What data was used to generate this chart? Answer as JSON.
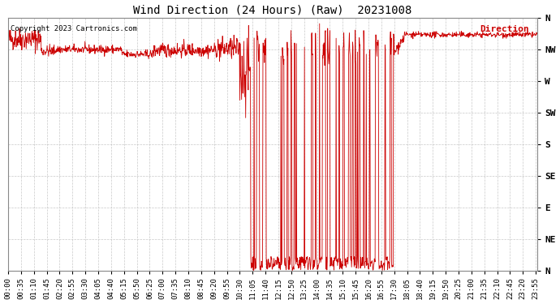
{
  "title": "Wind Direction (24 Hours) (Raw)  20231008",
  "copyright": "Copyright 2023 Cartronics.com",
  "legend_label": "Direction",
  "ytick_labels": [
    "N",
    "NW",
    "W",
    "SW",
    "S",
    "SE",
    "E",
    "NE",
    "N"
  ],
  "ytick_values": [
    360,
    315,
    270,
    225,
    180,
    135,
    90,
    45,
    0
  ],
  "ylim": [
    0,
    360
  ],
  "background_color": "#ffffff",
  "grid_color": "#bbbbbb",
  "line_color": "#cc0000",
  "title_color": "#000000",
  "legend_color": "#cc0000",
  "copyright_color": "#000000",
  "total_minutes": 1440,
  "xtick_step": 35,
  "figwidth": 6.9,
  "figheight": 3.75,
  "dpi": 100
}
